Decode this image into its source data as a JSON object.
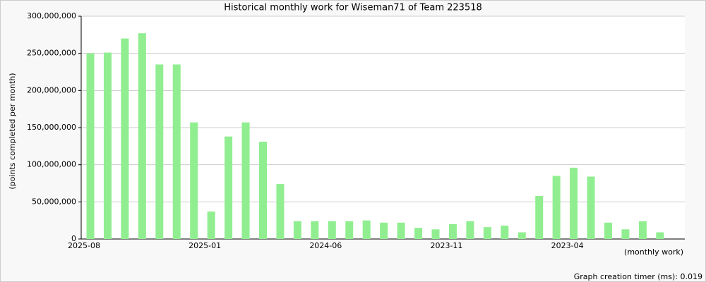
{
  "chart_data": {
    "type": "bar",
    "title": "Historical monthly work for Wiseman71 of Team 223518",
    "y_label": "(points completed per month)",
    "x_label": "(monthly work)",
    "footer": "Graph creation timer (ms): 0.019",
    "categories": [
      "2025-08",
      null,
      null,
      null,
      null,
      null,
      null,
      "2025-01",
      null,
      null,
      null,
      null,
      null,
      null,
      "2024-06",
      null,
      null,
      null,
      null,
      null,
      null,
      "2023-11",
      null,
      null,
      null,
      null,
      null,
      null,
      "2023-04",
      null,
      null,
      null,
      null,
      null
    ],
    "values": [
      250000000,
      251000000,
      270000000,
      277000000,
      235000000,
      235000000,
      157000000,
      37000000,
      138000000,
      157000000,
      131000000,
      74000000,
      24000000,
      24000000,
      24000000,
      24000000,
      25000000,
      22000000,
      22000000,
      15000000,
      13000000,
      20000000,
      24000000,
      16000000,
      18000000,
      9000000,
      58000000,
      85000000,
      96000000,
      84000000,
      22000000,
      13000000,
      24000000,
      9000000
    ],
    "color": "#90ee90",
    "ylim": [
      0,
      300000000
    ],
    "yticks": [
      0,
      {
        "value": 50000000,
        "label": "50,000,000"
      },
      {
        "value": 100000000,
        "label": "100,000,000"
      },
      {
        "value": 150000000,
        "label": "150,000,000"
      },
      {
        "value": 200000000,
        "label": "200,000,000"
      },
      {
        "value": 250000000,
        "label": "250,000,000"
      },
      {
        "value": 300000000,
        "label": "300,000,000"
      }
    ],
    "grid": true
  }
}
